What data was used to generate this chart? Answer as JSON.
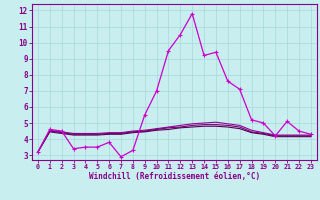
{
  "xlabel": "Windchill (Refroidissement éolien,°C)",
  "bg_color": "#c8eef0",
  "line_color": "#880088",
  "grid_color": "#a8d8d8",
  "x_ticks": [
    0,
    1,
    2,
    3,
    4,
    5,
    6,
    7,
    8,
    9,
    10,
    11,
    12,
    13,
    14,
    15,
    16,
    17,
    18,
    19,
    20,
    21,
    22,
    23
  ],
  "y_ticks": [
    3,
    4,
    5,
    6,
    7,
    8,
    9,
    10,
    11,
    12
  ],
  "xlim": [
    -0.5,
    23.5
  ],
  "ylim": [
    2.7,
    12.4
  ],
  "lines": [
    {
      "x": [
        0,
        1,
        2,
        3,
        4,
        5,
        6,
        7,
        8,
        9,
        10,
        11,
        12,
        13,
        14,
        15,
        16,
        17,
        18,
        19,
        20,
        21,
        22,
        23
      ],
      "y": [
        3.2,
        4.6,
        4.5,
        3.4,
        3.5,
        3.5,
        3.8,
        2.9,
        3.3,
        5.5,
        7.0,
        9.5,
        10.5,
        11.8,
        9.2,
        9.4,
        7.6,
        7.1,
        5.2,
        5.0,
        4.2,
        5.1,
        4.5,
        4.3
      ],
      "color": "#cc00cc",
      "linewidth": 0.9,
      "marker": "+",
      "markersize": 3.5,
      "zorder": 5
    },
    {
      "x": [
        0,
        1,
        2,
        3,
        4,
        5,
        6,
        7,
        8,
        9,
        10,
        11,
        12,
        13,
        14,
        15,
        16,
        17,
        18,
        19,
        20,
        21,
        22,
        23
      ],
      "y": [
        3.2,
        4.55,
        4.45,
        4.35,
        4.35,
        4.35,
        4.4,
        4.4,
        4.5,
        4.55,
        4.65,
        4.75,
        4.85,
        4.95,
        5.0,
        5.05,
        4.95,
        4.85,
        4.55,
        4.4,
        4.25,
        4.25,
        4.25,
        4.25
      ],
      "color": "#990099",
      "linewidth": 0.8,
      "marker": null,
      "zorder": 3
    },
    {
      "x": [
        0,
        1,
        2,
        3,
        4,
        5,
        6,
        7,
        8,
        9,
        10,
        11,
        12,
        13,
        14,
        15,
        16,
        17,
        18,
        19,
        20,
        21,
        22,
        23
      ],
      "y": [
        3.2,
        4.5,
        4.4,
        4.3,
        4.3,
        4.3,
        4.35,
        4.35,
        4.45,
        4.5,
        4.6,
        4.7,
        4.75,
        4.85,
        4.9,
        4.9,
        4.85,
        4.75,
        4.45,
        4.35,
        4.2,
        4.2,
        4.2,
        4.2
      ],
      "color": "#770077",
      "linewidth": 0.8,
      "marker": null,
      "zorder": 3
    },
    {
      "x": [
        0,
        1,
        2,
        3,
        4,
        5,
        6,
        7,
        8,
        9,
        10,
        11,
        12,
        13,
        14,
        15,
        16,
        17,
        18,
        19,
        20,
        21,
        22,
        23
      ],
      "y": [
        3.2,
        4.45,
        4.35,
        4.25,
        4.25,
        4.25,
        4.3,
        4.3,
        4.4,
        4.45,
        4.55,
        4.6,
        4.7,
        4.75,
        4.8,
        4.8,
        4.75,
        4.65,
        4.4,
        4.3,
        4.15,
        4.15,
        4.15,
        4.15
      ],
      "color": "#550055",
      "linewidth": 0.8,
      "marker": null,
      "zorder": 3
    }
  ]
}
